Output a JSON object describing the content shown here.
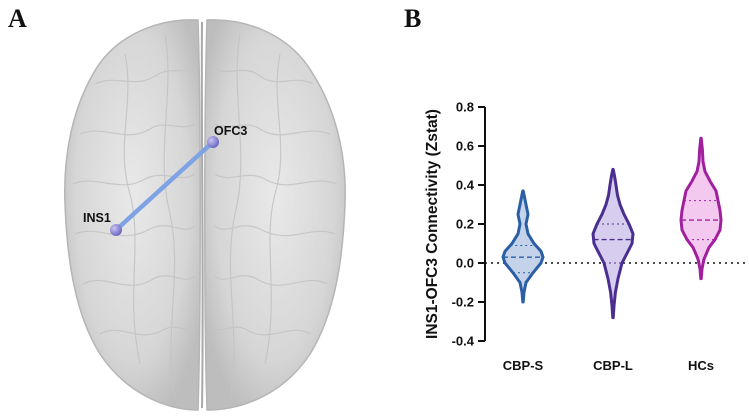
{
  "panels": {
    "a": {
      "letter": "A",
      "roi_labels": {
        "ins1": "INS1",
        "ofc3": "OFC3"
      },
      "colors": {
        "node": "#8f8ad8",
        "edge": "#7fa2e4",
        "brain": "#d9d9d9"
      }
    },
    "b": {
      "letter": "B"
    }
  },
  "chart_data": {
    "type": "violin",
    "title": "",
    "xlabel": "",
    "ylabel": "INS1-OFC3 Connectivity (Zstat)",
    "ylim": [
      -0.4,
      0.8
    ],
    "yticks": [
      -0.4,
      -0.2,
      0.0,
      0.2,
      0.4,
      0.6,
      0.8
    ],
    "ytick_labels": [
      "-0.4",
      "-0.2",
      "0.0",
      "0.2",
      "0.4",
      "0.6",
      "0.8"
    ],
    "reference_line": {
      "y": 0.0,
      "style": "dotted"
    },
    "categories": [
      "CBP-S",
      "CBP-L",
      "HCs"
    ],
    "series": [
      {
        "category": "CBP-S",
        "color": "#2a5fa5",
        "fill": "#c4d3ea",
        "min": -0.2,
        "max": 0.37,
        "median": 0.03,
        "quartiles": [
          -0.05,
          0.09
        ],
        "profile": [
          [
            -0.2,
            0.01
          ],
          [
            -0.15,
            0.05
          ],
          [
            -0.1,
            0.15
          ],
          [
            -0.05,
            0.5
          ],
          [
            0.0,
            0.9
          ],
          [
            0.03,
            1.0
          ],
          [
            0.06,
            0.9
          ],
          [
            0.1,
            0.55
          ],
          [
            0.15,
            0.25
          ],
          [
            0.2,
            0.15
          ],
          [
            0.25,
            0.25
          ],
          [
            0.3,
            0.15
          ],
          [
            0.34,
            0.07
          ],
          [
            0.37,
            0.01
          ]
        ]
      },
      {
        "category": "CBP-L",
        "color": "#4a2e90",
        "fill": "#d7cdee",
        "min": -0.28,
        "max": 0.48,
        "median": 0.12,
        "quartiles": [
          0.0,
          0.2
        ],
        "profile": [
          [
            -0.28,
            0.01
          ],
          [
            -0.22,
            0.05
          ],
          [
            -0.15,
            0.12
          ],
          [
            -0.08,
            0.25
          ],
          [
            0.0,
            0.45
          ],
          [
            0.05,
            0.7
          ],
          [
            0.1,
            0.95
          ],
          [
            0.15,
            1.0
          ],
          [
            0.2,
            0.8
          ],
          [
            0.25,
            0.55
          ],
          [
            0.3,
            0.35
          ],
          [
            0.35,
            0.22
          ],
          [
            0.4,
            0.15
          ],
          [
            0.45,
            0.07
          ],
          [
            0.48,
            0.01
          ]
        ]
      },
      {
        "category": "HCs",
        "color": "#a0209e",
        "fill": "#f4c9ef",
        "min": -0.08,
        "max": 0.64,
        "median": 0.22,
        "quartiles": [
          0.12,
          0.32
        ],
        "profile": [
          [
            -0.08,
            0.01
          ],
          [
            -0.03,
            0.05
          ],
          [
            0.02,
            0.15
          ],
          [
            0.08,
            0.4
          ],
          [
            0.12,
            0.7
          ],
          [
            0.17,
            0.95
          ],
          [
            0.22,
            1.0
          ],
          [
            0.27,
            0.95
          ],
          [
            0.32,
            0.85
          ],
          [
            0.37,
            0.75
          ],
          [
            0.42,
            0.45
          ],
          [
            0.47,
            0.2
          ],
          [
            0.52,
            0.1
          ],
          [
            0.58,
            0.07
          ],
          [
            0.62,
            0.03
          ],
          [
            0.64,
            0.01
          ]
        ]
      }
    ]
  }
}
